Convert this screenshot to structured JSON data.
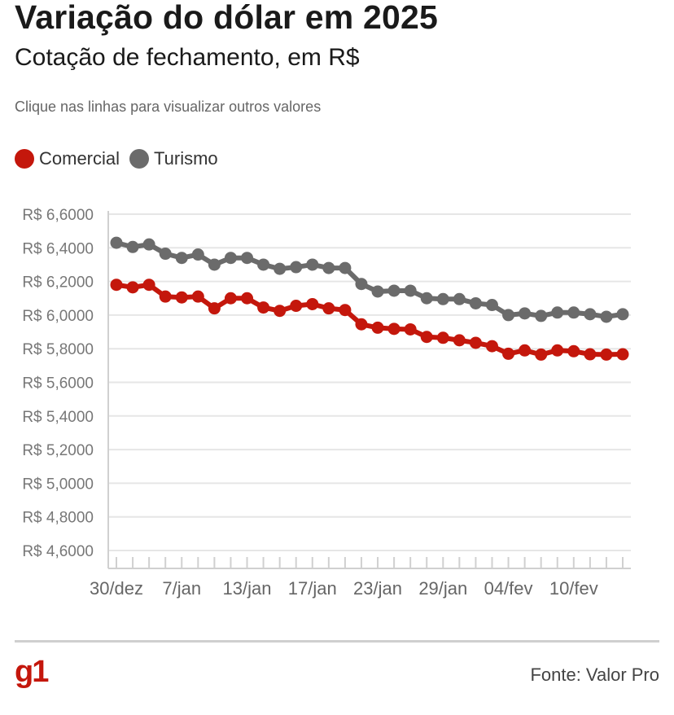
{
  "header": {
    "title": "Variação do dólar em 2025",
    "subtitle": "Cotação de fechamento, em R$",
    "hint": "Clique nas linhas para visualizar outros valores"
  },
  "footer": {
    "logo": "g1",
    "source": "Fonte: Valor Pro"
  },
  "colors": {
    "comercial": "#c4170c",
    "turismo": "#6b6b6b",
    "grid": "#e6e6e6",
    "axis": "#d0d0d0",
    "logo": "#c4170c"
  },
  "chart_data": {
    "type": "line",
    "ylim": [
      4.6,
      6.6
    ],
    "ytick_values": [
      4.6,
      4.8,
      5.0,
      5.2,
      5.4,
      5.6,
      5.8,
      6.0,
      6.2,
      6.4,
      6.6
    ],
    "ytick_labels": [
      "R$ 4,6000",
      "R$ 4,8000",
      "R$ 5,0000",
      "R$ 5,2000",
      "R$ 5,4000",
      "R$ 5,6000",
      "R$ 5,8000",
      "R$ 6,0000",
      "R$ 6,2000",
      "R$ 6,4000",
      "R$ 6,6000"
    ],
    "x": [
      "30/dez",
      "02/jan",
      "03/jan",
      "06/jan",
      "07/jan",
      "08/jan",
      "09/jan",
      "10/jan",
      "13/jan",
      "14/jan",
      "15/jan",
      "16/jan",
      "17/jan",
      "20/jan",
      "21/jan",
      "22/jan",
      "23/jan",
      "24/jan",
      "27/jan",
      "28/jan",
      "29/jan",
      "30/jan",
      "31/jan",
      "03/fev",
      "04/fev",
      "05/fev",
      "06/fev",
      "07/fev",
      "10/fev",
      "11/fev",
      "12/fev",
      "13/fev"
    ],
    "xtick_labels": [
      {
        "index": 0,
        "label": "30/dez"
      },
      {
        "index": 4,
        "label": "7/jan"
      },
      {
        "index": 8,
        "label": "13/jan"
      },
      {
        "index": 12,
        "label": "17/jan"
      },
      {
        "index": 16,
        "label": "23/jan"
      },
      {
        "index": 20,
        "label": "29/jan"
      },
      {
        "index": 24,
        "label": "04/fev"
      },
      {
        "index": 28,
        "label": "10/fev"
      }
    ],
    "legend_position": "top-left",
    "grid": true,
    "series": [
      {
        "name": "Comercial",
        "values": [
          6.18,
          6.165,
          6.18,
          6.11,
          6.105,
          6.11,
          6.04,
          6.1,
          6.1,
          6.045,
          6.025,
          6.055,
          6.065,
          6.04,
          6.03,
          5.945,
          5.925,
          5.918,
          5.915,
          5.87,
          5.865,
          5.85,
          5.835,
          5.815,
          5.77,
          5.79,
          5.765,
          5.79,
          5.785,
          5.767,
          5.765,
          5.767
        ]
      },
      {
        "name": "Turismo",
        "values": [
          6.43,
          6.405,
          6.42,
          6.365,
          6.34,
          6.36,
          6.3,
          6.34,
          6.34,
          6.3,
          6.275,
          6.285,
          6.3,
          6.28,
          6.28,
          6.185,
          6.14,
          6.145,
          6.145,
          6.1,
          6.095,
          6.095,
          6.07,
          6.06,
          6.0,
          6.01,
          5.995,
          6.015,
          6.015,
          6.005,
          5.99,
          6.005
        ]
      }
    ]
  }
}
